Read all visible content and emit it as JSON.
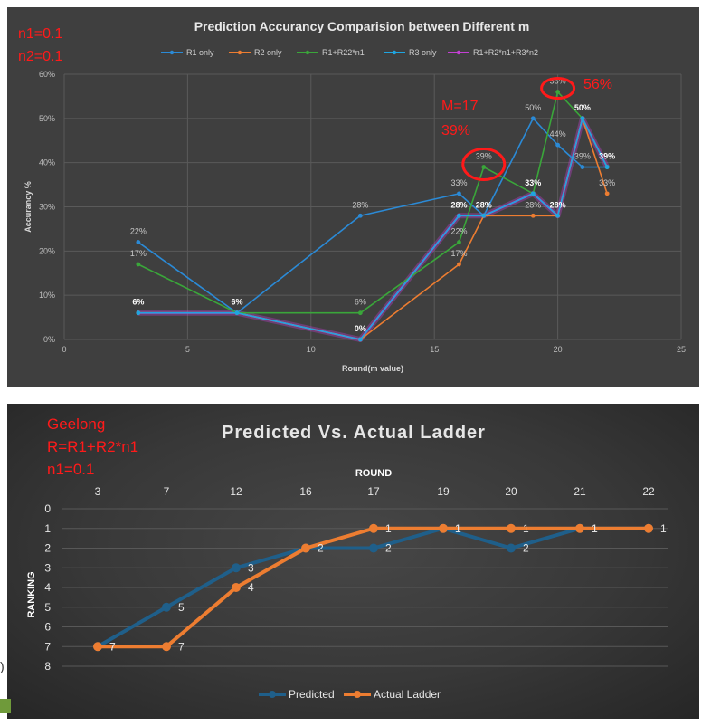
{
  "colors": {
    "r1": "#2b8ad6",
    "r2": "#ed7d31",
    "r1r22": "#3aa63a",
    "r3": "#1fa5e0",
    "r1r2r3": "#c33fd3",
    "predicted": "#1f5f8a",
    "actual": "#ed7d31",
    "annotation": "#ff1a1a"
  },
  "chart_data": [
    {
      "type": "line",
      "title": "Prediction Accurancy Comparision between Different m",
      "xlabel": "Round(m value)",
      "ylabel": "Accurancy %",
      "xlim": [
        0,
        25
      ],
      "ylim": [
        0,
        60
      ],
      "x_ticks": [
        "0",
        "5",
        "10",
        "15",
        "20",
        "25"
      ],
      "y_ticks": [
        "0%",
        "10%",
        "20%",
        "30%",
        "40%",
        "50%",
        "60%"
      ],
      "grid": true,
      "legend_position": "top",
      "annotations": [
        "n1=0.1",
        "n2=0.1",
        "M=17",
        "39%",
        "56%"
      ],
      "series": [
        {
          "name": "R1 only",
          "color_key": "r1",
          "points": [
            [
              3,
              22
            ],
            [
              7,
              6
            ],
            [
              12,
              28
            ],
            [
              16,
              33
            ],
            [
              17,
              28
            ],
            [
              19,
              50
            ],
            [
              20,
              44
            ],
            [
              21,
              39
            ],
            [
              22,
              39
            ]
          ],
          "labels": [
            "22%",
            "",
            "28%",
            "33%",
            "",
            "50%",
            "44%",
            "39%",
            ""
          ]
        },
        {
          "name": "R2 only",
          "color_key": "r2",
          "points": [
            [
              3,
              6
            ],
            [
              7,
              6
            ],
            [
              12,
              0
            ],
            [
              16,
              17
            ],
            [
              17,
              28
            ],
            [
              19,
              28
            ],
            [
              20,
              28
            ],
            [
              21,
              50
            ],
            [
              22,
              33
            ]
          ],
          "labels": [
            "",
            "",
            "",
            "17%",
            "",
            "28%",
            "",
            "",
            "33%"
          ]
        },
        {
          "name": "R1+R22*n1",
          "color_key": "r1r22",
          "points": [
            [
              3,
              17
            ],
            [
              7,
              6
            ],
            [
              12,
              6
            ],
            [
              16,
              22
            ],
            [
              17,
              39
            ],
            [
              19,
              33
            ],
            [
              20,
              56
            ],
            [
              21,
              50
            ],
            [
              22,
              39
            ]
          ],
          "labels": [
            "17%",
            "",
            "6%",
            "22%",
            "39%",
            "",
            "56%",
            "",
            ""
          ]
        },
        {
          "name": "R3 only",
          "color_key": "r3",
          "points": [
            [
              3,
              6
            ],
            [
              7,
              6
            ],
            [
              12,
              0
            ],
            [
              16,
              28
            ],
            [
              17,
              28
            ],
            [
              19,
              33
            ],
            [
              20,
              28
            ],
            [
              21,
              50
            ],
            [
              22,
              39
            ]
          ],
          "labels": [
            "",
            "",
            "",
            "",
            "",
            "",
            "",
            "",
            ""
          ]
        },
        {
          "name": "R1+R2*n1+R3*n2",
          "color_key": "r1r2r3",
          "points": [
            [
              3,
              6
            ],
            [
              7,
              6
            ],
            [
              12,
              0
            ],
            [
              16,
              28
            ],
            [
              17,
              28
            ],
            [
              19,
              33
            ],
            [
              20,
              28
            ],
            [
              21,
              50
            ],
            [
              22,
              39
            ]
          ],
          "labels": [
            "6%",
            "6%",
            "0%",
            "28%",
            "28%",
            "33%",
            "28%",
            "50%",
            "39%"
          ]
        }
      ]
    },
    {
      "type": "line",
      "title": "Predicted Vs. Actual Ladder",
      "xlabel": "ROUND",
      "ylabel": "RANKING",
      "categories": [
        "3",
        "7",
        "12",
        "16",
        "17",
        "19",
        "20",
        "21",
        "22"
      ],
      "ylim": [
        0,
        8
      ],
      "y_reversed": true,
      "y_ticks": [
        "0",
        "1",
        "2",
        "3",
        "4",
        "5",
        "6",
        "7",
        "8"
      ],
      "grid": true,
      "legend_position": "bottom",
      "annotations": [
        "Geelong",
        "R=R1+R2*n1",
        "n1=0.1"
      ],
      "series": [
        {
          "name": "Predicted",
          "color_key": "predicted",
          "values": [
            7,
            5,
            3,
            2,
            2,
            1,
            2,
            1,
            1
          ],
          "labels": [
            "7",
            "5",
            "3",
            "2",
            "2",
            "1",
            "2",
            "1",
            "1"
          ]
        },
        {
          "name": "Actual Ladder",
          "color_key": "actual",
          "values": [
            7,
            7,
            4,
            2,
            1,
            1,
            1,
            1,
            1
          ],
          "labels": [
            "7",
            "7",
            "4",
            "",
            "1",
            "1",
            "1",
            "1",
            ""
          ]
        }
      ]
    }
  ]
}
